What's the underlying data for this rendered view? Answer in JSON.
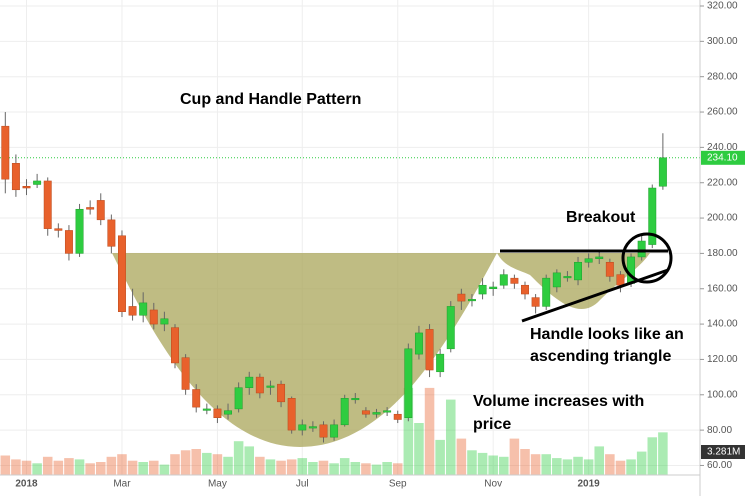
{
  "chart_data": {
    "type": "candlestick",
    "annotations": [
      "Cup and Handle Pattern",
      "Breakout",
      "Handle looks like an",
      "ascending triangle",
      "Volume increases with",
      "price"
    ],
    "categories": [
      null,
      null,
      "2018",
      null,
      null,
      null,
      null,
      null,
      null,
      null,
      null,
      "Mar",
      null,
      null,
      null,
      null,
      null,
      null,
      null,
      null,
      "May",
      null,
      null,
      null,
      null,
      null,
      null,
      null,
      "Jul",
      null,
      null,
      null,
      null,
      null,
      null,
      null,
      null,
      "Sep",
      null,
      null,
      null,
      null,
      null,
      null,
      null,
      null,
      "Nov",
      null,
      null,
      null,
      null,
      null,
      null,
      null,
      null,
      "2019",
      null,
      null,
      null,
      null,
      null,
      null,
      null
    ],
    "open": [
      252,
      231,
      218,
      219,
      221,
      194,
      193,
      180,
      206,
      210,
      199,
      190,
      150,
      145,
      148,
      140,
      138,
      121,
      103,
      92,
      92,
      89,
      92,
      104,
      110,
      105,
      106,
      98,
      80,
      82,
      83,
      76,
      83,
      98,
      91,
      89,
      91,
      89,
      87,
      123,
      137,
      113,
      126,
      157,
      154,
      157,
      160,
      162,
      166,
      162,
      155,
      150,
      161,
      167,
      165,
      175,
      177,
      175,
      168,
      163,
      178,
      185,
      218
    ],
    "high": [
      260,
      236,
      222,
      225,
      223,
      197,
      196,
      208,
      210,
      214,
      202,
      193,
      160,
      158,
      152,
      147,
      140,
      123,
      106,
      95,
      94,
      95,
      107,
      113,
      112,
      108,
      108,
      99,
      86,
      85,
      85,
      86,
      100,
      101,
      93,
      92,
      93,
      91,
      129,
      139,
      140,
      126,
      153,
      160,
      157,
      166,
      164,
      171,
      168,
      164,
      157,
      168,
      171,
      170,
      178,
      180,
      182,
      177,
      170,
      180,
      190,
      219,
      248
    ],
    "low": [
      214,
      212,
      213,
      217,
      190,
      189,
      176,
      178,
      202,
      196,
      180,
      144,
      142,
      141,
      137,
      136,
      115,
      100,
      90,
      89,
      84,
      86,
      90,
      100,
      98,
      100,
      93,
      78,
      77,
      79,
      73,
      74,
      82,
      95,
      87,
      87,
      88,
      84,
      85,
      120,
      110,
      110,
      124,
      148,
      150,
      154,
      156,
      160,
      160,
      154,
      146,
      148,
      158,
      164,
      162,
      172,
      174,
      164,
      158,
      161,
      176,
      183,
      216
    ],
    "close": [
      222,
      216,
      217,
      221,
      194,
      193,
      180,
      205,
      205,
      199,
      184,
      147,
      145,
      152,
      140,
      143,
      118,
      103,
      93,
      92,
      87,
      91,
      104,
      110,
      101,
      105,
      96,
      80,
      83,
      82,
      76,
      83,
      98,
      98,
      89,
      90,
      91,
      86,
      126,
      135,
      114,
      123,
      150,
      153,
      154,
      162,
      161,
      168,
      163,
      157,
      150,
      166,
      169,
      167,
      175,
      177,
      178,
      167,
      162,
      178,
      187,
      217,
      234.1
    ],
    "volume": [
      1.5,
      1.2,
      1.1,
      0.9,
      1.4,
      1.1,
      1.3,
      1.2,
      0.9,
      1.0,
      1.4,
      1.6,
      1.1,
      1.0,
      1.1,
      0.8,
      1.6,
      1.9,
      2.0,
      1.7,
      1.6,
      1.4,
      2.6,
      2.2,
      1.4,
      1.2,
      1.1,
      1.2,
      1.3,
      1.0,
      1.1,
      0.9,
      1.3,
      1.0,
      0.9,
      0.8,
      1.0,
      0.9,
      6.7,
      4.0,
      6.7,
      2.7,
      5.8,
      2.8,
      1.9,
      1.7,
      1.5,
      1.4,
      2.8,
      2.0,
      1.6,
      1.6,
      1.3,
      1.2,
      1.4,
      1.2,
      2.2,
      1.6,
      1.1,
      1.2,
      1.8,
      2.9,
      3.281
    ],
    "last_price_label": "234.10",
    "volume_label": "3.281M",
    "ylim": [
      54.6,
      323.4
    ],
    "volume_ylim": [
      0,
      8
    ],
    "yticks": [
      {
        "value": 60,
        "label": "60.00"
      },
      {
        "value": 80,
        "label": "80.00"
      },
      {
        "value": 100,
        "label": "100.00"
      },
      {
        "value": 120,
        "label": "120.00"
      },
      {
        "value": 140,
        "label": "140.00"
      },
      {
        "value": 160,
        "label": "160.00"
      },
      {
        "value": 180,
        "label": "180.00"
      },
      {
        "value": 200,
        "label": "200.00"
      },
      {
        "value": 220,
        "label": "220.00"
      },
      {
        "value": 240,
        "label": "240.00"
      },
      {
        "value": 260,
        "label": "260.00"
      },
      {
        "value": 280,
        "label": "280.00"
      },
      {
        "value": 300,
        "label": "300.00"
      },
      {
        "value": 320,
        "label": "320.00"
      }
    ],
    "up_color": "#2ecc40",
    "down_color": "#e8612c",
    "grid": true
  }
}
